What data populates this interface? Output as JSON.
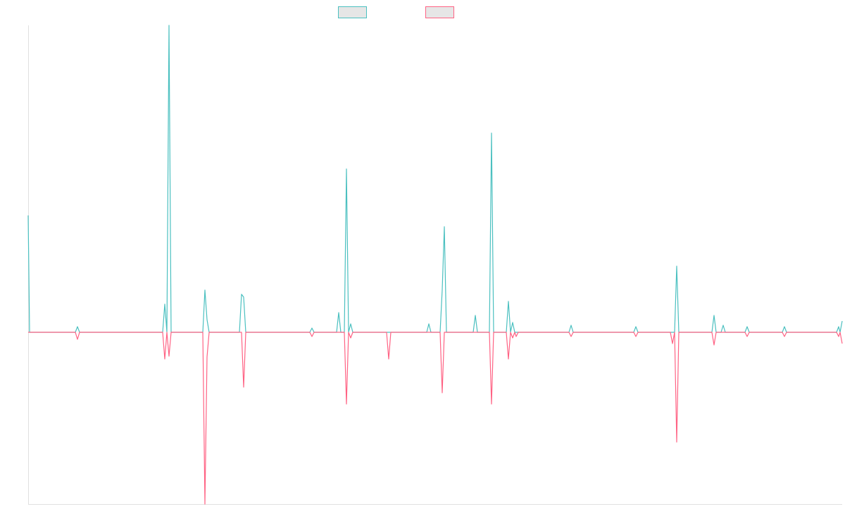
{
  "chart_data": {
    "type": "line",
    "x": [
      0,
      2,
      67,
      70,
      73,
      191,
      194,
      197,
      200,
      203,
      248,
      251,
      254,
      257,
      300,
      303,
      306,
      309,
      400,
      403,
      406,
      438,
      441,
      444,
      449,
      452,
      455,
      458,
      461,
      509,
      512,
      515,
      566,
      569,
      572,
      585,
      588,
      591,
      594,
      632,
      635,
      638,
      655,
      658,
      661,
      679,
      682,
      685,
      688,
      691,
      693,
      696,
      768,
      771,
      774,
      860,
      863,
      866,
      912,
      915,
      918,
      921,
      924,
      971,
      974,
      977,
      984,
      987,
      990,
      1018,
      1021,
      1024,
      1071,
      1074,
      1077,
      1148,
      1151,
      1153,
      1156
    ],
    "series": [
      {
        "color": "#4bc0c0",
        "values": [
          166,
          0,
          0,
          8,
          0,
          0,
          40,
          0,
          436,
          0,
          0,
          60,
          18,
          0,
          0,
          54,
          50,
          0,
          0,
          6,
          0,
          0,
          28,
          0,
          0,
          232,
          0,
          12,
          0,
          0,
          0,
          0,
          0,
          12,
          0,
          0,
          60,
          150,
          0,
          0,
          24,
          0,
          0,
          283,
          0,
          0,
          44,
          0,
          14,
          0,
          0,
          0,
          0,
          10,
          0,
          0,
          8,
          0,
          0,
          0,
          0,
          94,
          0,
          0,
          24,
          0,
          0,
          10,
          0,
          0,
          8,
          0,
          0,
          8,
          0,
          0,
          8,
          0,
          16
        ]
      },
      {
        "color": "#ff6384",
        "values": [
          0,
          0,
          0,
          -10,
          0,
          0,
          -38,
          0,
          -34,
          0,
          0,
          -244,
          -35,
          0,
          0,
          0,
          -78,
          0,
          0,
          -6,
          0,
          0,
          0,
          0,
          0,
          -102,
          0,
          -8,
          0,
          0,
          -38,
          0,
          0,
          0,
          0,
          0,
          -86,
          0,
          0,
          0,
          0,
          0,
          0,
          -102,
          0,
          0,
          -38,
          0,
          -8,
          0,
          -6,
          0,
          0,
          -6,
          0,
          0,
          -6,
          0,
          0,
          -16,
          0,
          -156,
          0,
          0,
          -18,
          0,
          0,
          0,
          0,
          0,
          -6,
          0,
          0,
          -6,
          0,
          0,
          -6,
          0,
          -16
        ]
      }
    ],
    "xlim": [
      0,
      1156
    ],
    "ylim": [
      -244,
      436
    ]
  }
}
